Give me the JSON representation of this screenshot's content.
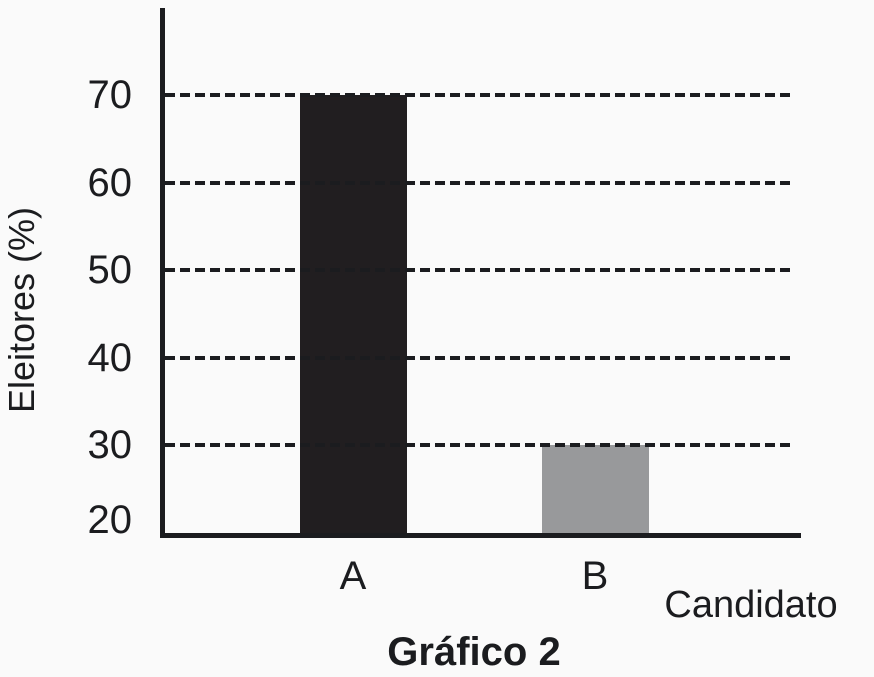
{
  "chart_data": {
    "type": "bar",
    "title": "Gráfico 2",
    "xlabel": "Candidato",
    "ylabel": "Eleitores (%)",
    "categories": [
      "A",
      "B"
    ],
    "values": [
      70,
      30
    ],
    "series": [
      {
        "name": "Eleitores (%)",
        "values": [
          70,
          30
        ]
      }
    ],
    "yticks": [
      20,
      30,
      40,
      50,
      60,
      70
    ],
    "ylim": [
      20,
      80
    ],
    "bar_colors": [
      "#211e20",
      "#98999b"
    ],
    "grid": {
      "horizontal": true,
      "style": "dashed",
      "values": [
        30,
        40,
        50,
        60,
        70
      ]
    },
    "legend": "none",
    "colors": {
      "background": "#fafafa",
      "ink": "#1b1c1f",
      "bar_a": "#211e20",
      "bar_b": "#98999b"
    }
  }
}
